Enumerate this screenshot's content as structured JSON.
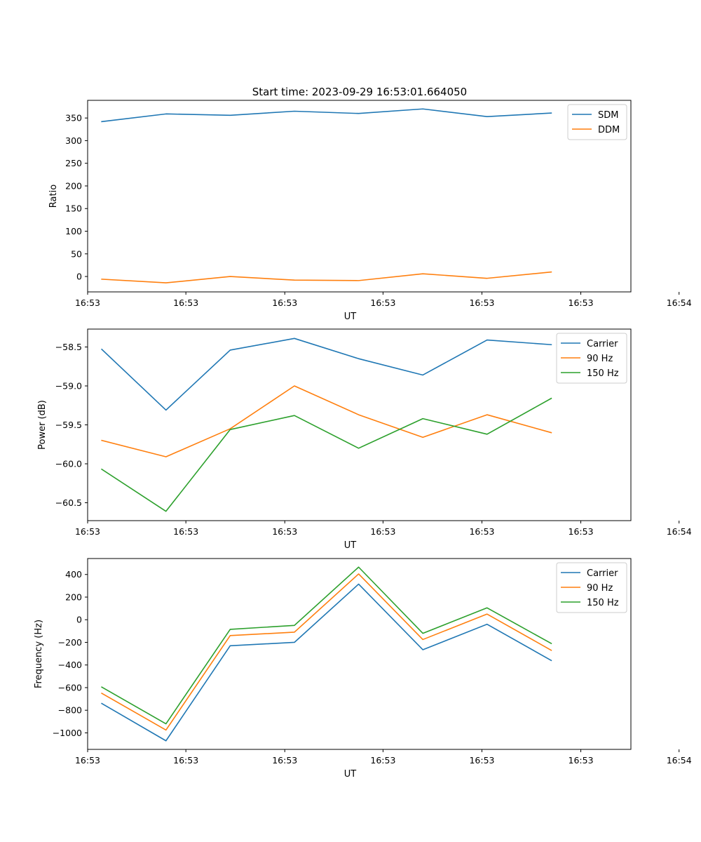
{
  "figure_title": "Start time: 2023-09-29 16:53:01.664050",
  "colors": {
    "c0": "#1f77b4",
    "c1": "#ff7f0e",
    "c2": "#2ca02c"
  },
  "chart_data": [
    {
      "type": "line",
      "id": "ratio",
      "title": "Start time: 2023-09-29 16:53:01.664050",
      "xlabel": "UT",
      "ylabel": "Ratio",
      "x": [
        1,
        2,
        3,
        4,
        5,
        6,
        7,
        8
      ],
      "xlim": [
        0.78,
        9.24
      ],
      "ylim": [
        -34,
        389
      ],
      "x_ticks": [
        {
          "pos": 0.78,
          "label": "16:53"
        },
        {
          "pos": 2.31,
          "label": "16:53"
        },
        {
          "pos": 3.85,
          "label": "16:53"
        },
        {
          "pos": 5.38,
          "label": "16:53"
        },
        {
          "pos": 6.92,
          "label": "16:53"
        },
        {
          "pos": 8.46,
          "label": "16:53"
        },
        {
          "pos": 9.99,
          "label": "16:54"
        }
      ],
      "y_ticks": [
        {
          "value": 0,
          "label": "0"
        },
        {
          "value": 50,
          "label": "50"
        },
        {
          "value": 100,
          "label": "100"
        },
        {
          "value": 150,
          "label": "150"
        },
        {
          "value": 200,
          "label": "200"
        },
        {
          "value": 250,
          "label": "250"
        },
        {
          "value": 300,
          "label": "300"
        },
        {
          "value": 350,
          "label": "350"
        }
      ],
      "legend_position": "top-right",
      "series": [
        {
          "name": "SDM",
          "color": "#1f77b4",
          "values": [
            342,
            359,
            356,
            365,
            360,
            370,
            353,
            361
          ]
        },
        {
          "name": "DDM",
          "color": "#ff7f0e",
          "values": [
            -6,
            -14,
            0,
            -8,
            -9,
            6,
            -4,
            10
          ]
        }
      ]
    },
    {
      "type": "line",
      "id": "power",
      "title": "",
      "xlabel": "UT",
      "ylabel": "Power (dB)",
      "x": [
        1,
        2,
        3,
        4,
        5,
        6,
        7,
        8
      ],
      "xlim": [
        0.78,
        9.24
      ],
      "ylim": [
        -60.73,
        -58.27
      ],
      "x_ticks": [
        {
          "pos": 0.78,
          "label": "16:53"
        },
        {
          "pos": 2.31,
          "label": "16:53"
        },
        {
          "pos": 3.85,
          "label": "16:53"
        },
        {
          "pos": 5.38,
          "label": "16:53"
        },
        {
          "pos": 6.92,
          "label": "16:53"
        },
        {
          "pos": 8.46,
          "label": "16:53"
        },
        {
          "pos": 9.99,
          "label": "16:54"
        }
      ],
      "y_ticks": [
        {
          "value": -60.5,
          "label": "−60.5"
        },
        {
          "value": -60.0,
          "label": "−60.0"
        },
        {
          "value": -59.5,
          "label": "−59.5"
        },
        {
          "value": -59.0,
          "label": "−59.0"
        },
        {
          "value": -58.5,
          "label": "−58.5"
        }
      ],
      "legend_position": "top-right",
      "series": [
        {
          "name": "Carrier",
          "color": "#1f77b4",
          "values": [
            -58.53,
            -59.31,
            -58.54,
            -58.39,
            -58.65,
            -58.86,
            -58.41,
            -58.47
          ]
        },
        {
          "name": "90 Hz",
          "color": "#ff7f0e",
          "values": [
            -59.7,
            -59.91,
            -59.55,
            -59.0,
            -59.37,
            -59.66,
            -59.37,
            -59.6
          ]
        },
        {
          "name": "150 Hz",
          "color": "#2ca02c",
          "values": [
            -60.07,
            -60.61,
            -59.56,
            -59.38,
            -59.8,
            -59.42,
            -59.62,
            -59.16
          ]
        }
      ]
    },
    {
      "type": "line",
      "id": "frequency",
      "title": "",
      "xlabel": "UT",
      "ylabel": "Frequency (Hz)",
      "x": [
        1,
        2,
        3,
        4,
        5,
        6,
        7,
        8
      ],
      "xlim": [
        0.78,
        9.24
      ],
      "ylim": [
        -1146,
        541
      ],
      "x_ticks": [
        {
          "pos": 0.78,
          "label": "16:53"
        },
        {
          "pos": 2.31,
          "label": "16:53"
        },
        {
          "pos": 3.85,
          "label": "16:53"
        },
        {
          "pos": 5.38,
          "label": "16:53"
        },
        {
          "pos": 6.92,
          "label": "16:53"
        },
        {
          "pos": 8.46,
          "label": "16:53"
        },
        {
          "pos": 9.99,
          "label": "16:54"
        }
      ],
      "y_ticks": [
        {
          "value": -1000,
          "label": "−1000"
        },
        {
          "value": -800,
          "label": "−800"
        },
        {
          "value": -600,
          "label": "−600"
        },
        {
          "value": -400,
          "label": "−400"
        },
        {
          "value": -200,
          "label": "−200"
        },
        {
          "value": 0,
          "label": "0"
        },
        {
          "value": 200,
          "label": "200"
        },
        {
          "value": 400,
          "label": "400"
        }
      ],
      "legend_position": "top-right",
      "series": [
        {
          "name": "Carrier",
          "color": "#1f77b4",
          "values": [
            -740,
            -1070,
            -230,
            -200,
            315,
            -265,
            -40,
            -360
          ]
        },
        {
          "name": "90 Hz",
          "color": "#ff7f0e",
          "values": [
            -650,
            -975,
            -140,
            -110,
            405,
            -175,
            50,
            -270
          ]
        },
        {
          "name": "150 Hz",
          "color": "#2ca02c",
          "values": [
            -595,
            -920,
            -85,
            -50,
            465,
            -120,
            105,
            -210
          ]
        }
      ]
    }
  ]
}
